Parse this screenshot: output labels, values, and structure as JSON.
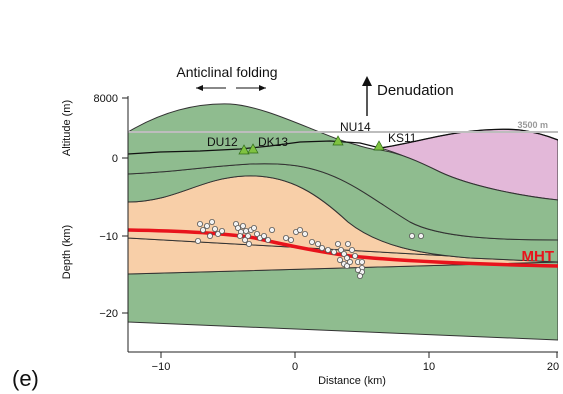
{
  "panel_label": "(e)",
  "annotations": {
    "anticlinal": "Anticlinal folding",
    "denudation": "Denudation",
    "ref_line": "3500 m",
    "fault": "MHT"
  },
  "axes": {
    "altitude_label": "Altitude (m)",
    "depth_label": "Depth (km)",
    "x_label": "Distance (km)",
    "altitude_ticks": [
      "8000",
      "0"
    ],
    "depth_ticks": [
      "−10",
      "−20"
    ],
    "x_ticks": [
      "−10",
      "0",
      "10",
      "20"
    ]
  },
  "stations": [
    {
      "name": "DU12"
    },
    {
      "name": "DK13"
    },
    {
      "name": "NU14"
    },
    {
      "name": "KS11"
    }
  ],
  "colors": {
    "green": "#8fbc8f",
    "orange": "#f8cfa8",
    "pink": "#e3b8d9",
    "fault": "#e8131c",
    "station": "#7fc241",
    "ref_line": "#bdbdbd"
  }
}
